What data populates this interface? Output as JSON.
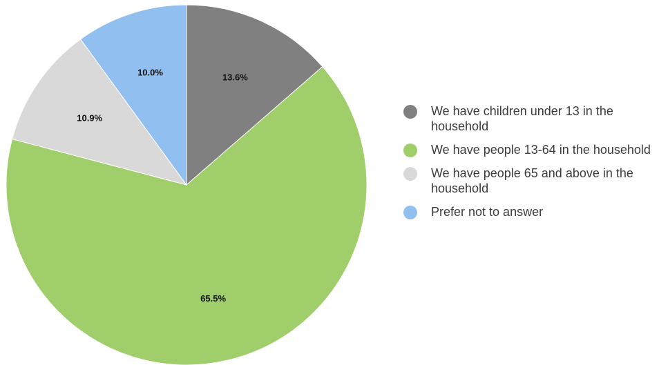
{
  "chart_data": {
    "type": "pie",
    "title": "",
    "start_angle_deg": 0,
    "direction": "clockwise",
    "legend_position": "right",
    "slices": [
      {
        "name": "We have children under 13 in the household",
        "value": 13.6,
        "label": "13.6%",
        "color": "#808080"
      },
      {
        "name": "We have people 13-64 in the household",
        "value": 65.5,
        "label": "65.5%",
        "color": "#9fce6a"
      },
      {
        "name": "We have people 65 and above in the household",
        "value": 10.9,
        "label": "10.9%",
        "color": "#d9d9d9"
      },
      {
        "name": "Prefer not to answer",
        "value": 10.0,
        "label": "10.0%",
        "color": "#91bfef"
      }
    ]
  }
}
